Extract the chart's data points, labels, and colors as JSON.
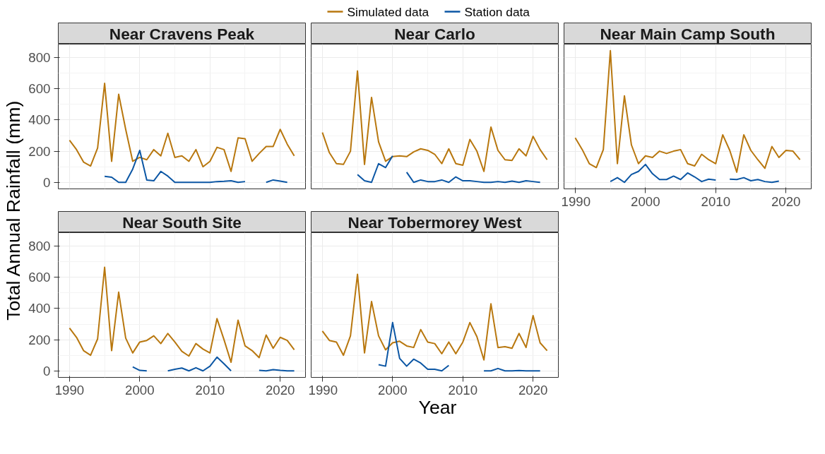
{
  "chart_data": [
    {
      "type": "line",
      "title": "Near Cravens Peak",
      "ylabel": "Total Annual Rainfall (mm)",
      "legend": "top",
      "grid": true,
      "tick_labels": "y",
      "x": [
        1990,
        1991,
        1992,
        1993,
        1994,
        1995,
        1996,
        1997,
        1998,
        1999,
        2000,
        2001,
        2002,
        2003,
        2004,
        2005,
        2006,
        2007,
        2008,
        2009,
        2010,
        2011,
        2012,
        2013,
        2014,
        2015,
        2016,
        2017,
        2018,
        2019,
        2020,
        2021,
        2022
      ],
      "xlim": [
        1988.4,
        2023.6
      ],
      "ylim": [
        -42,
        887
      ],
      "xticks": [
        1990,
        2000,
        2010,
        2020
      ],
      "yticks": [
        0,
        200,
        400,
        600,
        800
      ],
      "series": [
        {
          "name": "Simulated data",
          "color": "#b8770e",
          "values": [
            270,
            210,
            130,
            105,
            220,
            635,
            135,
            565,
            340,
            135,
            160,
            145,
            210,
            170,
            315,
            160,
            170,
            135,
            210,
            100,
            135,
            225,
            210,
            70,
            285,
            280,
            135,
            185,
            230,
            230,
            340,
            245,
            170
          ]
        },
        {
          "name": "Station data",
          "color": "#0b56a4",
          "values": [
            null,
            null,
            null,
            null,
            null,
            38,
            33,
            0,
            0,
            85,
            205,
            15,
            10,
            70,
            40,
            0,
            0,
            0,
            0,
            0,
            0,
            5,
            7,
            10,
            0,
            5,
            null,
            null,
            0,
            15,
            8,
            0,
            null
          ]
        }
      ]
    },
    {
      "type": "line",
      "title": "Near Carlo",
      "grid": true,
      "tick_labels": false,
      "x": [
        1990,
        1991,
        1992,
        1993,
        1994,
        1995,
        1996,
        1997,
        1998,
        1999,
        2000,
        2001,
        2002,
        2003,
        2004,
        2005,
        2006,
        2007,
        2008,
        2009,
        2010,
        2011,
        2012,
        2013,
        2014,
        2015,
        2016,
        2017,
        2018,
        2019,
        2020,
        2021,
        2022
      ],
      "xlim": [
        1988.4,
        2023.6
      ],
      "ylim": [
        -42,
        887
      ],
      "xticks": [
        1990,
        2000,
        2010,
        2020
      ],
      "yticks": [
        0,
        200,
        400,
        600,
        800
      ],
      "series": [
        {
          "color": "#b8770e",
          "values": [
            320,
            190,
            120,
            115,
            200,
            715,
            115,
            545,
            260,
            135,
            165,
            170,
            165,
            195,
            215,
            205,
            180,
            120,
            215,
            120,
            110,
            275,
            200,
            70,
            355,
            205,
            145,
            140,
            215,
            170,
            295,
            210,
            145
          ]
        },
        {
          "color": "#0b56a4",
          "values": [
            null,
            null,
            null,
            null,
            null,
            50,
            10,
            0,
            120,
            95,
            170,
            null,
            65,
            0,
            15,
            5,
            5,
            15,
            0,
            35,
            10,
            10,
            5,
            0,
            0,
            5,
            0,
            8,
            0,
            10,
            5,
            0,
            null
          ]
        }
      ]
    },
    {
      "type": "line",
      "title": "Near Main Camp South",
      "grid": true,
      "tick_labels": "x",
      "x": [
        1990,
        1991,
        1992,
        1993,
        1994,
        1995,
        1996,
        1997,
        1998,
        1999,
        2000,
        2001,
        2002,
        2003,
        2004,
        2005,
        2006,
        2007,
        2008,
        2009,
        2010,
        2011,
        2012,
        2013,
        2014,
        2015,
        2016,
        2017,
        2018,
        2019,
        2020,
        2021,
        2022
      ],
      "xlim": [
        1988.4,
        2023.6
      ],
      "ylim": [
        -42,
        887
      ],
      "xticks": [
        1990,
        2000,
        2010,
        2020
      ],
      "yticks": [
        0,
        200,
        400,
        600,
        800
      ],
      "series": [
        {
          "color": "#b8770e",
          "values": [
            285,
            210,
            120,
            95,
            210,
            845,
            120,
            555,
            240,
            120,
            170,
            160,
            200,
            185,
            200,
            210,
            120,
            105,
            180,
            145,
            120,
            305,
            205,
            65,
            305,
            205,
            145,
            90,
            230,
            160,
            205,
            200,
            145
          ]
        },
        {
          "color": "#0b56a4",
          "values": [
            null,
            null,
            null,
            null,
            null,
            5,
            30,
            0,
            50,
            70,
            115,
            55,
            18,
            18,
            40,
            18,
            60,
            35,
            5,
            20,
            15,
            null,
            20,
            18,
            30,
            10,
            18,
            5,
            0,
            8,
            null,
            null,
            null
          ]
        }
      ]
    },
    {
      "type": "line",
      "title": "Near South Site",
      "grid": true,
      "x": [
        1990,
        1991,
        1992,
        1993,
        1994,
        1995,
        1996,
        1997,
        1998,
        1999,
        2000,
        2001,
        2002,
        2003,
        2004,
        2005,
        2006,
        2007,
        2008,
        2009,
        2010,
        2011,
        2012,
        2013,
        2014,
        2015,
        2016,
        2017,
        2018,
        2019,
        2020,
        2021,
        2022
      ],
      "xlim": [
        1988.4,
        2023.6
      ],
      "ylim": [
        -42,
        887
      ],
      "xticks": [
        1990,
        2000,
        2010,
        2020
      ],
      "yticks": [
        0,
        200,
        400,
        600,
        800
      ],
      "series": [
        {
          "color": "#b8770e",
          "values": [
            275,
            215,
            130,
            100,
            205,
            665,
            130,
            505,
            210,
            115,
            185,
            195,
            225,
            175,
            240,
            185,
            125,
            95,
            175,
            140,
            115,
            335,
            200,
            55,
            325,
            160,
            130,
            85,
            230,
            145,
            215,
            195,
            135
          ]
        },
        {
          "color": "#0b56a4",
          "values": [
            null,
            null,
            null,
            null,
            null,
            null,
            null,
            null,
            null,
            25,
            3,
            0,
            null,
            null,
            0,
            10,
            18,
            0,
            20,
            0,
            30,
            88,
            45,
            0,
            null,
            null,
            null,
            3,
            0,
            8,
            3,
            0,
            0
          ]
        }
      ]
    },
    {
      "type": "line",
      "title": "Near Tobermorey West",
      "xlabel": "Year",
      "grid": true,
      "tick_labels": "x",
      "x": [
        1990,
        1991,
        1992,
        1993,
        1994,
        1995,
        1996,
        1997,
        1998,
        1999,
        2000,
        2001,
        2002,
        2003,
        2004,
        2005,
        2006,
        2007,
        2008,
        2009,
        2010,
        2011,
        2012,
        2013,
        2014,
        2015,
        2016,
        2017,
        2018,
        2019,
        2020,
        2021,
        2022
      ],
      "xlim": [
        1988.4,
        2023.6
      ],
      "ylim": [
        -42,
        887
      ],
      "xticks": [
        1990,
        2000,
        2010,
        2020
      ],
      "yticks": [
        0,
        200,
        400,
        600,
        800
      ],
      "series": [
        {
          "color": "#b8770e",
          "values": [
            255,
            195,
            185,
            100,
            225,
            620,
            115,
            445,
            225,
            135,
            180,
            190,
            160,
            150,
            265,
            185,
            175,
            110,
            185,
            110,
            185,
            310,
            220,
            70,
            430,
            150,
            155,
            145,
            240,
            150,
            355,
            180,
            130
          ]
        },
        {
          "color": "#0b56a4",
          "values": [
            null,
            null,
            null,
            null,
            null,
            null,
            null,
            null,
            40,
            30,
            310,
            80,
            30,
            75,
            50,
            10,
            10,
            0,
            35,
            null,
            null,
            null,
            null,
            0,
            0,
            15,
            0,
            0,
            2,
            0,
            0,
            0,
            null
          ]
        }
      ]
    }
  ]
}
